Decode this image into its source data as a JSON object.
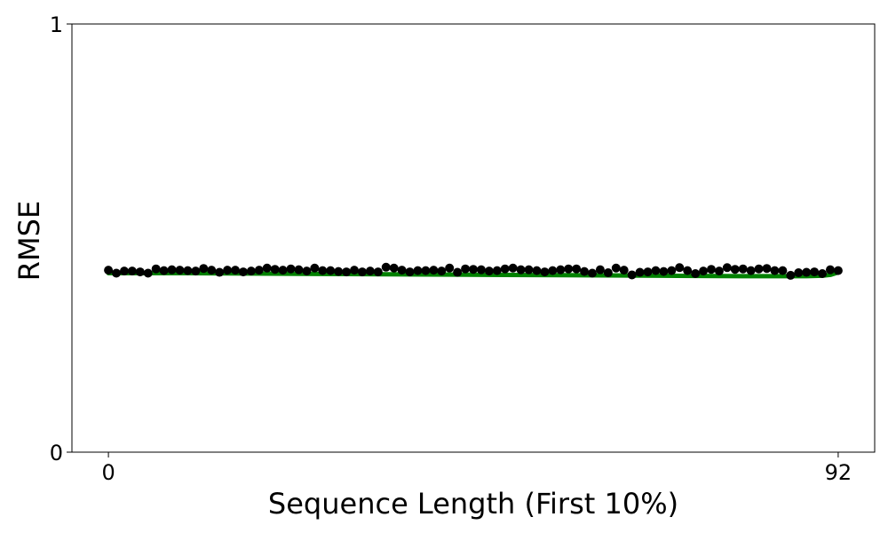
{
  "chart_data": {
    "type": "scatter",
    "title": "",
    "xlabel": "Sequence Length (First 10%)",
    "ylabel": "RMSE",
    "xlim": [
      -4.6,
      96.6
    ],
    "ylim": [
      0,
      1
    ],
    "x_ticks": [
      0,
      92
    ],
    "y_ticks": [
      0,
      1
    ],
    "x_tick_labels": [
      "0",
      "92"
    ],
    "y_tick_labels": [
      "0",
      "1"
    ],
    "grid": false,
    "legend": "none",
    "series": [
      {
        "kind": "points",
        "color": "#000000",
        "x": [
          0,
          1,
          2,
          3,
          4,
          5,
          6,
          7,
          8,
          9,
          10,
          11,
          12,
          13,
          14,
          15,
          16,
          17,
          18,
          19,
          20,
          21,
          22,
          23,
          24,
          25,
          26,
          27,
          28,
          29,
          30,
          31,
          32,
          33,
          34,
          35,
          36,
          37,
          38,
          39,
          40,
          41,
          42,
          43,
          44,
          45,
          46,
          47,
          48,
          49,
          50,
          51,
          52,
          53,
          54,
          55,
          56,
          57,
          58,
          59,
          60,
          61,
          62,
          63,
          64,
          65,
          66,
          67,
          68,
          69,
          70,
          71,
          72,
          73,
          74,
          75,
          76,
          77,
          78,
          79,
          80,
          81,
          82,
          83,
          84,
          85,
          86,
          87,
          88,
          89,
          90,
          91,
          92
        ],
        "y": [
          0.425,
          0.418,
          0.423,
          0.423,
          0.421,
          0.418,
          0.428,
          0.424,
          0.426,
          0.425,
          0.424,
          0.423,
          0.429,
          0.425,
          0.42,
          0.425,
          0.425,
          0.421,
          0.423,
          0.425,
          0.43,
          0.427,
          0.425,
          0.428,
          0.426,
          0.423,
          0.43,
          0.424,
          0.424,
          0.422,
          0.421,
          0.425,
          0.421,
          0.423,
          0.421,
          0.432,
          0.43,
          0.425,
          0.421,
          0.424,
          0.424,
          0.425,
          0.423,
          0.43,
          0.42,
          0.428,
          0.427,
          0.426,
          0.423,
          0.424,
          0.428,
          0.43,
          0.426,
          0.426,
          0.424,
          0.421,
          0.424,
          0.426,
          0.428,
          0.428,
          0.422,
          0.418,
          0.426,
          0.419,
          0.43,
          0.425,
          0.414,
          0.42,
          0.421,
          0.424,
          0.422,
          0.424,
          0.431,
          0.424,
          0.417,
          0.423,
          0.427,
          0.423,
          0.431,
          0.427,
          0.428,
          0.424,
          0.428,
          0.429,
          0.424,
          0.424,
          0.413,
          0.419,
          0.42,
          0.421,
          0.417,
          0.426,
          0.424
        ]
      },
      {
        "kind": "line",
        "color": "#008000",
        "x": [
          0,
          10,
          20,
          30,
          40,
          50,
          60,
          70,
          80,
          88,
          90,
          91,
          92
        ],
        "y": [
          0.418,
          0.418,
          0.417,
          0.416,
          0.415,
          0.414,
          0.413,
          0.412,
          0.411,
          0.411,
          0.412,
          0.414,
          0.42
        ]
      }
    ]
  }
}
